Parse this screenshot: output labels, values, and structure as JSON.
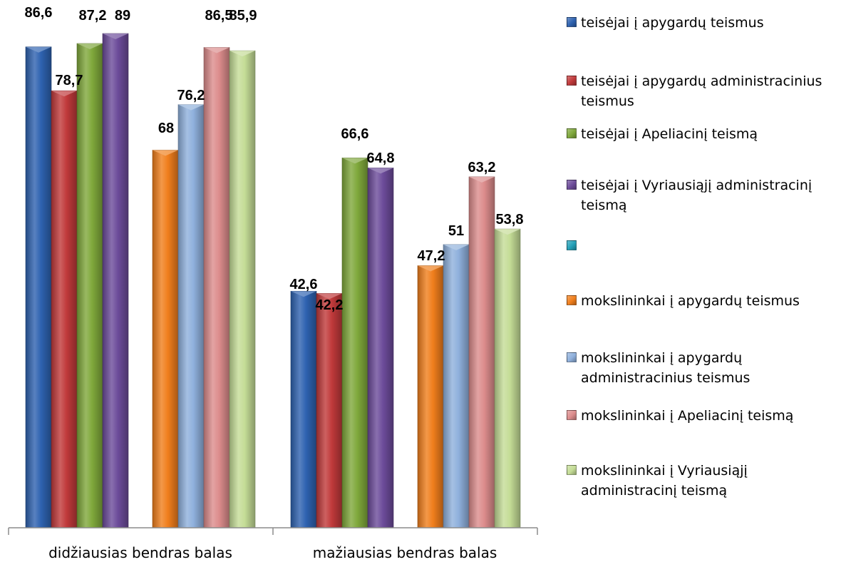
{
  "chart_data": {
    "type": "bar",
    "categories": [
      "didžiausias bendras balas",
      "mažiausias bendras balas"
    ],
    "ylim": [
      0,
      89
    ],
    "grid": false,
    "legend_position": "right",
    "series": [
      {
        "name": "teisėjai į apygardų teismus",
        "color": "#2e62b0",
        "values": [
          86.6,
          42.6
        ],
        "labels": [
          "86,6",
          "42,6"
        ]
      },
      {
        "name": "teisėjai į apygardų administracinius teismus",
        "color": "#c0393a",
        "values": [
          78.7,
          42.2
        ],
        "labels": [
          "78,7",
          "42,2"
        ]
      },
      {
        "name": "teisėjai į Apeliacinį teismą",
        "color": "#7fa83b",
        "values": [
          87.2,
          66.6
        ],
        "labels": [
          "87,2",
          "66,6"
        ]
      },
      {
        "name": "teisėjai į Vyriausiąjį administracinį teismą",
        "color": "#6c4b9a",
        "values": [
          89,
          64.8
        ],
        "labels": [
          "89",
          "64,8"
        ]
      },
      {
        "name": "",
        "color": "#23a0b8",
        "values": [
          null,
          null
        ],
        "labels": [
          "",
          ""
        ]
      },
      {
        "name": "mokslininkai  į apygardų teismus",
        "color": "#f07e1c",
        "values": [
          68,
          47.2
        ],
        "labels": [
          "68",
          "47,2"
        ]
      },
      {
        "name": "mokslininkai į apygardų administracinius teismus",
        "color": "#8fb0dc",
        "values": [
          76.2,
          51
        ],
        "labels": [
          "76,2",
          "51"
        ]
      },
      {
        "name": "mokslininkai į Apeliacinį teismą",
        "color": "#dc8c8c",
        "values": [
          86.5,
          63.2
        ],
        "labels": [
          "86,5",
          "63,2"
        ]
      },
      {
        "name": "mokslininkai  į Vyriausiąjį administracinį teismą",
        "color": "#c4dc96",
        "values": [
          85.9,
          53.8
        ],
        "labels": [
          "85,9",
          "53,8"
        ]
      }
    ]
  }
}
